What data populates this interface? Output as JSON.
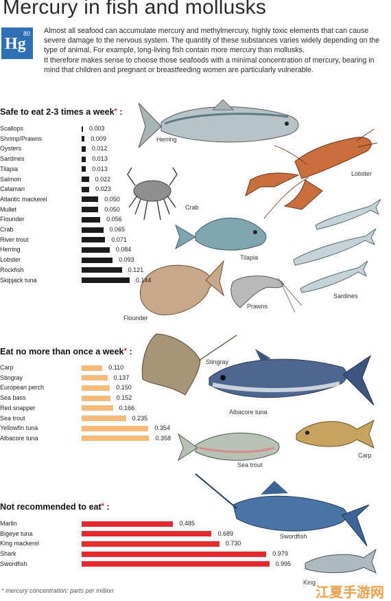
{
  "header": {
    "title": "Mercury in fish and mollusks",
    "element_symbol": "Hg",
    "element_number": "80",
    "intro_1": "Almost all seafood can accumulate mercury and methylmercury, highly toxic elements that can cause severe damage to the nervous system. The quantity of these substances varies widely depending on the type of animal. For example, long-living fish contain more mercury than mollusks.",
    "intro_2": "It therefore makes sense to choose those seafoods with a minimal concentration of mercury, bearing in mind that children and pregnant or breastfeeding women are particularly vulnerable."
  },
  "colors": {
    "safe": "#1c1c1c",
    "once": "#f5bb79",
    "not": "#e32a2e",
    "accent": "#2f6fb5"
  },
  "chart_data": [
    {
      "type": "bar",
      "title": "Safe to eat 2-3 times a week",
      "categories": [
        "Scallops",
        "Shrimp/Prawns",
        "Oysters",
        "Sardines",
        "Tilapia",
        "Salmon",
        "Calamari",
        "Atlantic mackerel",
        "Mullet",
        "Flounder",
        "Crab",
        "River trout",
        "Herring",
        "Lobster",
        "Rockfish",
        "Skipjack tuna"
      ],
      "values": [
        0.003,
        0.009,
        0.012,
        0.013,
        0.013,
        0.022,
        0.023,
        0.05,
        0.05,
        0.056,
        0.065,
        0.071,
        0.084,
        0.093,
        0.121,
        0.144
      ],
      "labels": [
        "0.003",
        "0.009",
        "0.012",
        "0.013",
        "0.013",
        "0.022",
        "0.023",
        "0.050",
        "0.050",
        "0.056",
        "0.065",
        "0.071",
        "0.084",
        "0.093",
        "0.121",
        "0.144"
      ]
    },
    {
      "type": "bar",
      "title": "Eat no more than once a week",
      "categories": [
        "Carp",
        "Stingray",
        "European perch",
        "Sea bass",
        "Red snapper",
        "Sea trout",
        "Yellowfin tuna",
        "Albacore tuna"
      ],
      "values": [
        0.11,
        0.137,
        0.15,
        0.152,
        0.166,
        0.235,
        0.354,
        0.358
      ],
      "labels": [
        "0.110",
        "0.137",
        "0.150",
        "0.152",
        "0.166",
        "0.235",
        "0.354",
        "0.358"
      ]
    },
    {
      "type": "bar",
      "title": "Not recommended to eat",
      "categories": [
        "Marlin",
        "Bigeye tuna",
        "King mackerel",
        "Shark",
        "Swordfish"
      ],
      "values": [
        0.485,
        0.689,
        0.73,
        0.979,
        0.995
      ],
      "labels": [
        "0.485",
        "0.689",
        "0.730",
        "0.979",
        "0.995"
      ]
    }
  ],
  "star": "*",
  "footnote": "* mercury concentration: parts per million",
  "fish_labels": {
    "herring": "Herring",
    "lobster": "Lobster",
    "crab": "Crab",
    "tilapia": "Tilapia",
    "sardines": "Sardines",
    "prawns": "Prawns",
    "flounder": "Flounder",
    "stingray": "Stingray",
    "albacore": "Albacore tuna",
    "carp": "Carp",
    "seatrout": "Sea trout",
    "swordfish": "Swordfish",
    "king": "King"
  },
  "watermark": "江夏手游网"
}
